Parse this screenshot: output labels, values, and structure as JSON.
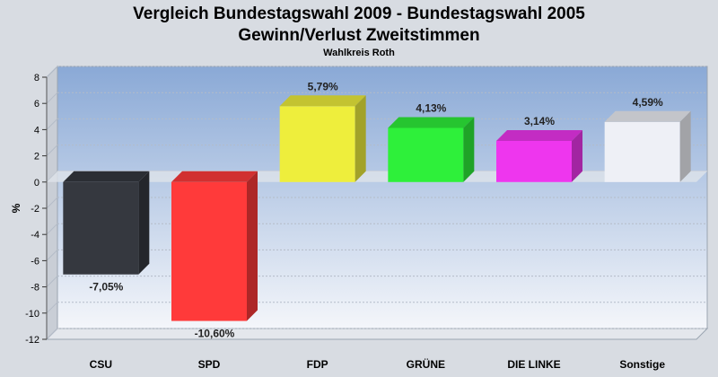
{
  "chart_data": {
    "type": "bar",
    "title": "Vergleich Bundestagswahl 2009 - Bundestagswahl 2005",
    "subtitle": "Gewinn/Verlust Zweitstimmen",
    "caption": "Wahlkreis Roth",
    "ylabel": "%",
    "xlabel": "",
    "ylim": [
      -12,
      8
    ],
    "yticks": [
      8,
      6,
      4,
      2,
      0,
      -2,
      -4,
      -6,
      -8,
      -10,
      -12
    ],
    "grid": true,
    "categories": [
      "CSU",
      "SPD",
      "FDP",
      "GRÜNE",
      "DIE LINKE",
      "Sonstige"
    ],
    "values": [
      -7.05,
      -10.6,
      5.79,
      4.13,
      3.14,
      4.59
    ],
    "value_labels": [
      "-7,05%",
      "-10,60%",
      "5,79%",
      "4,13%",
      "3,14%",
      "4,59%"
    ],
    "colors": [
      "#35383f",
      "#ff3a3a",
      "#eeee3c",
      "#2ef03a",
      "#ee36ee",
      "#eef0f6"
    ]
  }
}
